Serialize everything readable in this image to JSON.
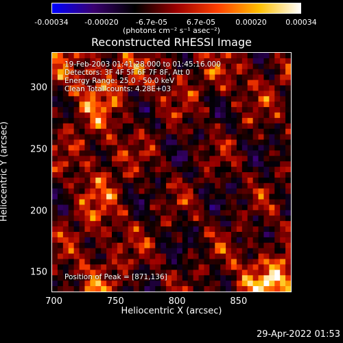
{
  "colorbar": {
    "ticks": [
      "-0.00034",
      "-0.00020",
      "-6.7e-05",
      "6.7e-05",
      "0.00020",
      "0.00034"
    ],
    "units": "(photons cm⁻² s⁻¹ asec⁻²)"
  },
  "header": {
    "title": "Reconstructed RHESSI Image",
    "time_range": "19-Feb-2003 01:41:28.000 to 01:45:16.000",
    "detectors": "Detectors: 3F 4F 5F 6F 7F 8F, Att 0",
    "energy_range": "Energy Range: 25.0 - 50.0 keV",
    "clean_counts": "Clean     Total counts: 4.28E+03",
    "peak_position": "Position of Peak = [871,136]"
  },
  "footer": {
    "timestamp": "29-Apr-2022 01:53"
  },
  "chart_data": {
    "type": "heatmap",
    "xlabel": "Heliocentric X (arcsec)",
    "ylabel": "Heliocentric Y (arcsec)",
    "x_ticks": [
      "700",
      "750",
      "800",
      "850"
    ],
    "y_ticks": [
      "150",
      "200",
      "250",
      "300"
    ],
    "xlim": [
      698,
      893
    ],
    "ylim": [
      134,
      329
    ],
    "x_tick_values": [
      700,
      750,
      800,
      850
    ],
    "y_tick_values": [
      150,
      200,
      250,
      300
    ],
    "colorbar_range": [
      -0.00034,
      0.00034
    ],
    "colormap": [
      "#0000ff",
      "#3a0070",
      "#000000",
      "#9b0000",
      "#ff4000",
      "#ffbf00",
      "#ffffff"
    ],
    "peak": [
      871,
      136
    ]
  }
}
